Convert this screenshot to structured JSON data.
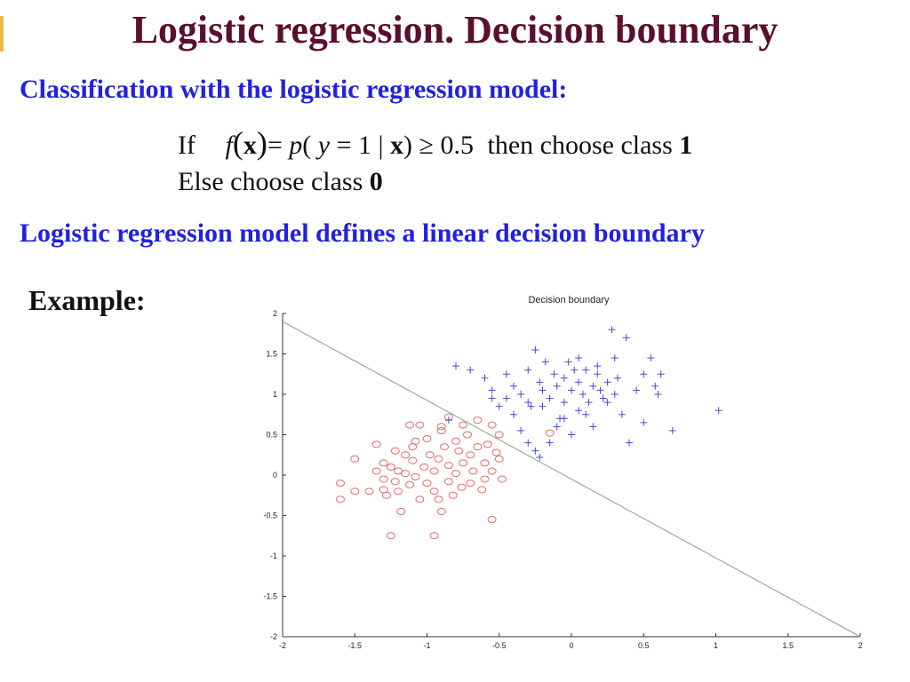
{
  "slide": {
    "title": "Logistic regression.  Decision boundary",
    "subhead1": "Classification with the logistic regression model:",
    "rule_if": {
      "if_word": "If",
      "then_text": "then choose class",
      "class_one": "1"
    },
    "rule_else": {
      "else_text": "Else  choose class",
      "class_zero": "0"
    },
    "subhead2": "Logistic regression model defines a linear decision boundary",
    "example_label": "Example:"
  },
  "chart_data": {
    "type": "scatter",
    "title": "Decision boundary",
    "xlim": [
      -2,
      2
    ],
    "ylim": [
      -2,
      2
    ],
    "xticks": [
      "-2",
      "-1.5",
      "-1",
      "-0.5",
      "0",
      "0.5",
      "1",
      "1.5",
      "2"
    ],
    "yticks": [
      "-2",
      "-1.5",
      "-1",
      "-0.5",
      "0",
      "0.5",
      "1",
      "1.5",
      "2"
    ],
    "grid": false,
    "colors": {
      "class0": "#e06a6a",
      "class1": "#4a4acc",
      "boundary": "#8aa08a"
    },
    "boundary": {
      "x": [
        -2,
        2
      ],
      "y": [
        1.9,
        -2.0
      ]
    },
    "series": [
      {
        "marker": "circle",
        "points": [
          [
            -1.6,
            -0.1
          ],
          [
            -1.6,
            -0.3
          ],
          [
            -1.5,
            0.2
          ],
          [
            -1.5,
            -0.2
          ],
          [
            -1.4,
            -0.2
          ],
          [
            -1.35,
            0.05
          ],
          [
            -1.3,
            0.15
          ],
          [
            -1.3,
            -0.05
          ],
          [
            -1.28,
            -0.25
          ],
          [
            -1.25,
            0.1
          ],
          [
            -1.25,
            -0.75
          ],
          [
            -1.22,
            0.3
          ],
          [
            -1.2,
            0.05
          ],
          [
            -1.2,
            -0.2
          ],
          [
            -1.18,
            -0.45
          ],
          [
            -1.15,
            0.25
          ],
          [
            -1.15,
            0.02
          ],
          [
            -1.12,
            -0.12
          ],
          [
            -1.1,
            0.35
          ],
          [
            -1.1,
            0.18
          ],
          [
            -1.08,
            -0.02
          ],
          [
            -1.05,
            -0.3
          ],
          [
            -1.02,
            0.1
          ],
          [
            -1.0,
            -0.1
          ],
          [
            -1.0,
            0.45
          ],
          [
            -0.98,
            0.25
          ],
          [
            -0.95,
            -0.2
          ],
          [
            -0.95,
            0.05
          ],
          [
            -0.92,
            0.2
          ],
          [
            -0.9,
            -0.45
          ],
          [
            -0.9,
            0.55
          ],
          [
            -0.88,
            0.35
          ],
          [
            -0.85,
            0.12
          ],
          [
            -0.85,
            -0.08
          ],
          [
            -0.82,
            -0.25
          ],
          [
            -0.8,
            0.42
          ],
          [
            -0.8,
            0.02
          ],
          [
            -0.78,
            0.3
          ],
          [
            -0.76,
            -0.15
          ],
          [
            -0.75,
            0.15
          ],
          [
            -0.72,
            0.5
          ],
          [
            -0.7,
            -0.1
          ],
          [
            -0.7,
            0.25
          ],
          [
            -0.68,
            0.05
          ],
          [
            -0.65,
            0.35
          ],
          [
            -0.62,
            -0.18
          ],
          [
            -0.6,
            0.15
          ],
          [
            -0.58,
            0.38
          ],
          [
            -0.55,
            0.05
          ],
          [
            -0.55,
            -0.55
          ],
          [
            -0.52,
            0.28
          ],
          [
            -0.5,
            0.5
          ],
          [
            -0.5,
            0.2
          ],
          [
            -0.48,
            -0.05
          ],
          [
            -0.85,
            0.72
          ],
          [
            -0.75,
            0.62
          ],
          [
            -0.95,
            -0.75
          ],
          [
            -1.12,
            0.62
          ],
          [
            -1.05,
            0.62
          ],
          [
            -0.9,
            0.6
          ],
          [
            -1.35,
            0.38
          ],
          [
            -1.3,
            -0.18
          ],
          [
            -1.22,
            -0.08
          ],
          [
            -0.92,
            -0.3
          ],
          [
            -0.65,
            0.68
          ],
          [
            -0.55,
            0.62
          ],
          [
            -0.15,
            0.52
          ],
          [
            -0.6,
            -0.05
          ],
          [
            -1.08,
            0.42
          ]
        ]
      },
      {
        "marker": "plus",
        "points": [
          [
            -0.85,
            0.68
          ],
          [
            -0.8,
            1.35
          ],
          [
            -0.7,
            1.3
          ],
          [
            -0.6,
            1.2
          ],
          [
            -0.55,
            1.05
          ],
          [
            -0.55,
            0.95
          ],
          [
            -0.5,
            0.85
          ],
          [
            -0.45,
            1.25
          ],
          [
            -0.4,
            1.1
          ],
          [
            -0.35,
            1.0
          ],
          [
            -0.3,
            0.9
          ],
          [
            -0.3,
            1.3
          ],
          [
            -0.25,
            1.55
          ],
          [
            -0.22,
            1.15
          ],
          [
            -0.2,
            1.05
          ],
          [
            -0.2,
            0.85
          ],
          [
            -0.18,
            1.4
          ],
          [
            -0.15,
            0.95
          ],
          [
            -0.12,
            1.25
          ],
          [
            -0.1,
            1.1
          ],
          [
            -0.08,
            0.7
          ],
          [
            -0.05,
            1.2
          ],
          [
            -0.05,
            0.9
          ],
          [
            -0.02,
            1.4
          ],
          [
            0.0,
            1.05
          ],
          [
            0.02,
            1.3
          ],
          [
            0.05,
            0.8
          ],
          [
            0.05,
            1.15
          ],
          [
            0.08,
            1.0
          ],
          [
            0.1,
            1.3
          ],
          [
            0.12,
            0.9
          ],
          [
            0.15,
            1.1
          ],
          [
            0.15,
            0.6
          ],
          [
            0.18,
            1.25
          ],
          [
            0.2,
            1.05
          ],
          [
            0.22,
            0.95
          ],
          [
            0.25,
            1.15
          ],
          [
            0.28,
            1.8
          ],
          [
            0.3,
            1.0
          ],
          [
            0.32,
            1.2
          ],
          [
            0.35,
            0.75
          ],
          [
            0.38,
            1.7
          ],
          [
            0.4,
            0.4
          ],
          [
            0.45,
            1.05
          ],
          [
            0.5,
            1.25
          ],
          [
            0.5,
            0.65
          ],
          [
            0.55,
            1.45
          ],
          [
            0.58,
            1.1
          ],
          [
            0.6,
            1.0
          ],
          [
            0.62,
            1.25
          ],
          [
            0.7,
            0.55
          ],
          [
            1.02,
            0.8
          ],
          [
            -0.3,
            0.4
          ],
          [
            -0.35,
            0.55
          ],
          [
            -0.25,
            0.3
          ],
          [
            -0.22,
            0.22
          ],
          [
            -0.15,
            0.4
          ],
          [
            -0.05,
            0.7
          ],
          [
            0.1,
            0.75
          ],
          [
            0.0,
            0.5
          ],
          [
            -0.4,
            0.75
          ],
          [
            -0.45,
            0.95
          ],
          [
            0.05,
            1.45
          ],
          [
            0.18,
            1.35
          ],
          [
            -0.28,
            0.85
          ],
          [
            0.25,
            0.9
          ],
          [
            -0.1,
            0.6
          ],
          [
            0.3,
            1.45
          ]
        ]
      }
    ]
  }
}
